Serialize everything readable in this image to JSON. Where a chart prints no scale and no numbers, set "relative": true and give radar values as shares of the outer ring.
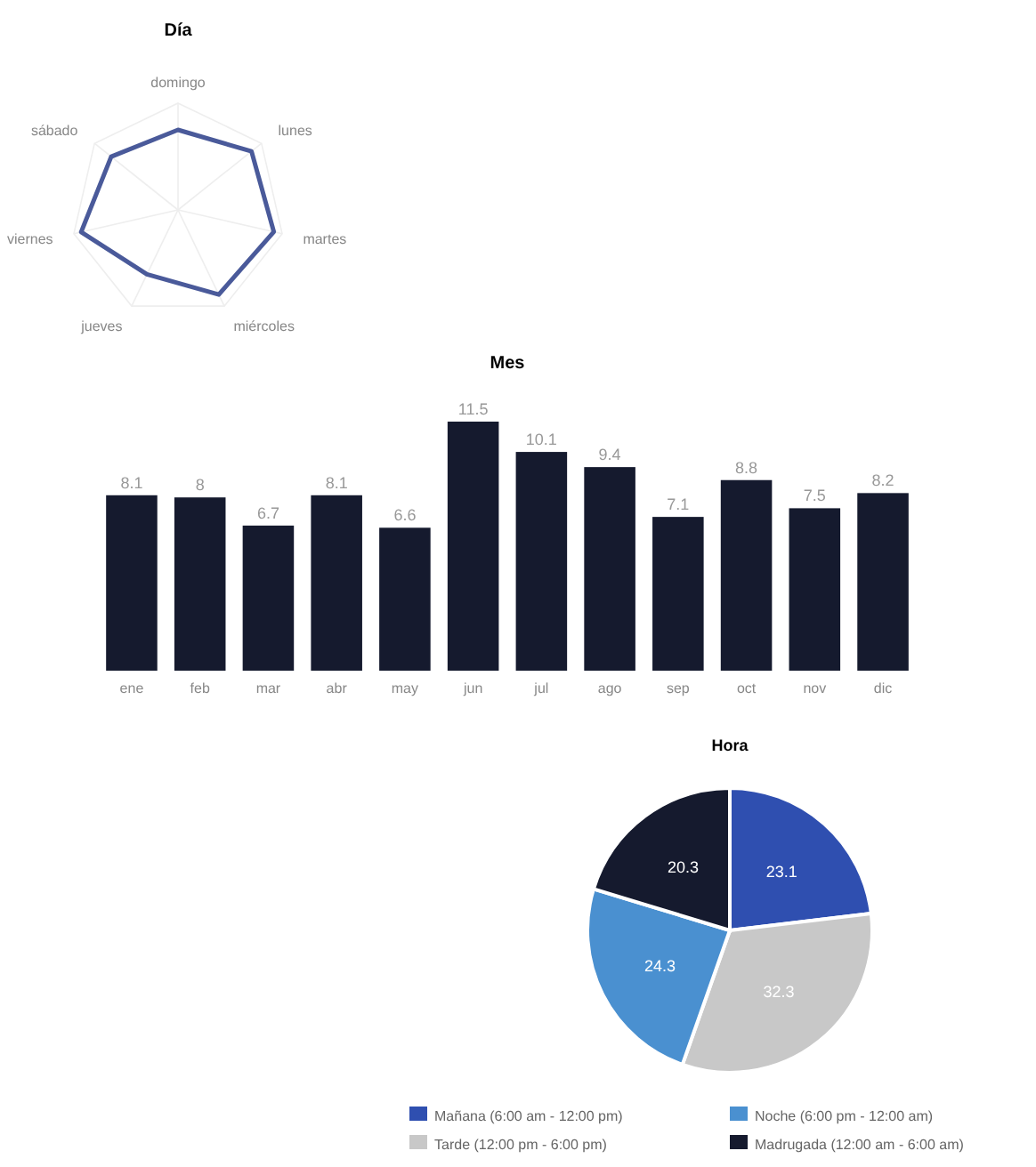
{
  "chart_data": [
    {
      "type": "radar",
      "title": "Día",
      "relative": true,
      "categories": [
        "domingo",
        "lunes",
        "martes",
        "miércoles",
        "jueves",
        "viernes",
        "sábado"
      ],
      "series": [
        {
          "color": "#4a5a9a",
          "values": [
            0.75,
            0.88,
            0.92,
            0.88,
            0.67,
            0.93,
            0.8
          ]
        }
      ]
    },
    {
      "type": "bar",
      "title": "Mes",
      "categories": [
        "ene",
        "feb",
        "mar",
        "abr",
        "may",
        "jun",
        "jul",
        "ago",
        "sep",
        "oct",
        "nov",
        "dic"
      ],
      "color": "#151a2e",
      "data_labels": true,
      "values": [
        8.1,
        8.0,
        6.7,
        8.1,
        6.6,
        11.5,
        10.1,
        9.4,
        7.1,
        8.8,
        7.5,
        8.2
      ]
    },
    {
      "type": "pie",
      "title": "Hora",
      "data_labels": true,
      "legend": "bottom",
      "categories": [
        "Mañana (6:00 am - 12:00 pm)",
        "Tarde (12:00 pm - 6:00 pm)",
        "Noche (6:00 pm - 12:00 am)",
        "Madrugada (12:00 am - 6:00 am)"
      ],
      "values": [
        23.1,
        32.3,
        24.3,
        20.3
      ],
      "colors": [
        "#2f4fb0",
        "#c8c8c8",
        "#4a90d0",
        "#151a2e"
      ]
    }
  ]
}
